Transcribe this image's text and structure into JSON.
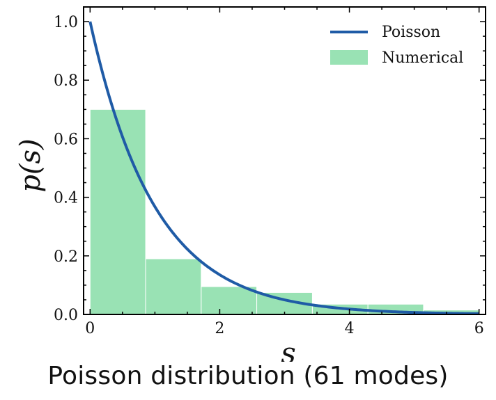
{
  "chart_data": {
    "type": "bar",
    "xlabel": "s",
    "ylabel": "p(s)",
    "xlim": [
      -0.1,
      6.1
    ],
    "ylim": [
      0,
      1.05
    ],
    "x_ticks": [
      0,
      2,
      4,
      6
    ],
    "y_ticks": [
      0.0,
      0.2,
      0.4,
      0.6,
      0.8,
      1.0
    ],
    "x_tick_labels": [
      "0",
      "2",
      "4",
      "6"
    ],
    "y_tick_labels": [
      "0.0",
      "0.2",
      "0.4",
      "0.6",
      "0.8",
      "1.0"
    ],
    "legend_position": "top-right",
    "series": [
      {
        "name": "Poisson",
        "type": "line",
        "function": "exp(-s)",
        "x_range": [
          0,
          6
        ],
        "color": "#1f5ba6"
      },
      {
        "name": "Numerical",
        "type": "histogram",
        "color": "#99e2b4",
        "bin_edges": [
          0,
          0.857,
          1.714,
          2.571,
          3.429,
          4.286,
          5.143,
          6.0
        ],
        "values": [
          0.7,
          0.19,
          0.095,
          0.075,
          0.035,
          0.035,
          0.015
        ]
      }
    ]
  },
  "caption": "Poisson distribution (61 modes)"
}
